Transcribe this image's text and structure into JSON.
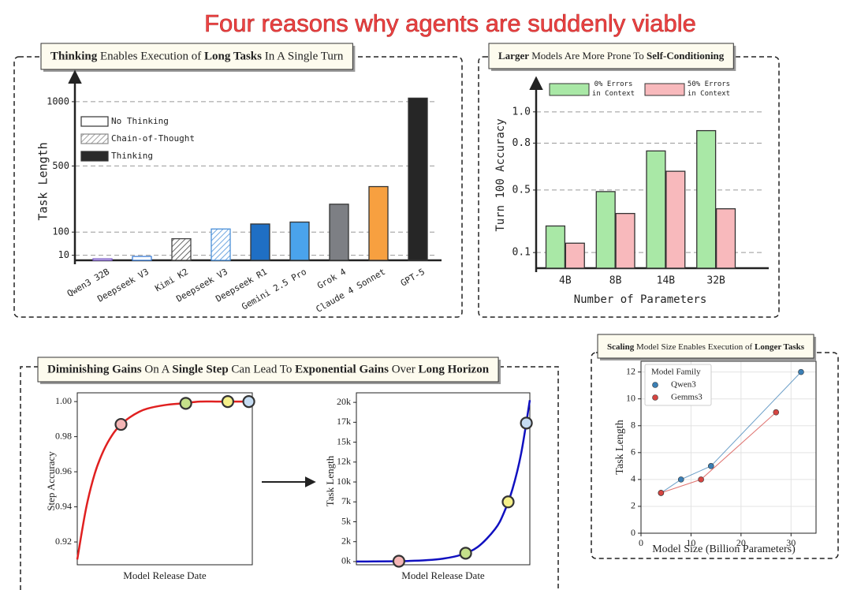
{
  "title": "Four reasons why agents are suddenly viable",
  "panels": [
    {
      "heading": [
        {
          "text": "Thinking",
          "bold": true
        },
        {
          "text": " Enables Execution of ",
          "bold": false
        },
        {
          "text": "Long Tasks",
          "bold": true
        },
        {
          "text": " In A Single Turn",
          "bold": false
        }
      ]
    },
    {
      "heading": [
        {
          "text": "Larger",
          "bold": true
        },
        {
          "text": " Models Are More Prone To ",
          "bold": false
        },
        {
          "text": "Self-Conditioning",
          "bold": true
        }
      ]
    },
    {
      "heading": [
        {
          "text": "Diminishing Gains",
          "bold": true
        },
        {
          "text": " On A ",
          "bold": false
        },
        {
          "text": "Single Step",
          "bold": true
        },
        {
          "text": " Can Lead To ",
          "bold": false
        },
        {
          "text": "Exponential Gains",
          "bold": true
        },
        {
          "text": " Over ",
          "bold": false
        },
        {
          "text": "Long Horizon",
          "bold": true
        }
      ]
    },
    {
      "heading": [
        {
          "text": "Scaling",
          "bold": true
        },
        {
          "text": " Model Size Enables Execution of ",
          "bold": false
        },
        {
          "text": "Longer Tasks",
          "bold": true
        }
      ]
    }
  ],
  "chart_data": [
    {
      "type": "bar",
      "ylabel": "Task Length",
      "categories": [
        "Qwen3 32B",
        "Deepseek V3",
        "Kimi K2",
        "Deepseek V3",
        "Deepseek R1",
        "Gemini 2.5 Pro",
        "Grok 4",
        "Claude 4 Sonnet",
        "GPT-5"
      ],
      "ylim": [
        0,
        1100
      ],
      "yticks": [
        10,
        100,
        500,
        1000
      ],
      "grid": true,
      "series": [
        {
          "name": "No Thinking",
          "style": "hollow",
          "color": "#ffffff",
          "values": [
            2,
            7,
            null,
            null,
            null,
            null,
            null,
            null,
            null
          ],
          "colors": [
            "#7c5cc8",
            "#3f7fd6",
            null,
            null,
            null,
            null,
            null,
            null,
            null
          ]
        },
        {
          "name": "Chain-of-Thought",
          "style": "hatched",
          "color": "#888888",
          "values": [
            null,
            null,
            70,
            115,
            null,
            null,
            null,
            null,
            null
          ],
          "colors": [
            null,
            null,
            "#444444",
            "#4a90d9",
            null,
            null,
            null,
            null,
            null
          ]
        },
        {
          "name": "Thinking",
          "style": "solid",
          "color": "#2b2b2b",
          "values": [
            null,
            null,
            null,
            null,
            140,
            150,
            250,
            360,
            1030
          ],
          "colors": [
            null,
            null,
            null,
            null,
            "#1f6fc4",
            "#4aa3ec",
            "#7d7f84",
            "#f7a040",
            "#262626"
          ]
        }
      ]
    },
    {
      "type": "bar",
      "xlabel": "Number of Parameters",
      "ylabel": "Turn 100 Accuracy",
      "categories": [
        "4B",
        "8B",
        "14B",
        "32B"
      ],
      "ylim": [
        0,
        1.1
      ],
      "yticks": [
        0.1,
        0.5,
        0.8,
        {
          "value": 1,
          "label": "1.0"
        }
      ],
      "grid": true,
      "series": [
        {
          "name": "0% Errors in Context",
          "style": "solid",
          "color": "#a9e8a6",
          "values": [
            0.27,
            0.49,
            0.75,
            0.88
          ]
        },
        {
          "name": "50% Errors in Context",
          "style": "solid",
          "color": "#f8b9bc",
          "values": [
            0.16,
            0.35,
            0.62,
            0.38
          ]
        }
      ]
    },
    {
      "type": "line",
      "xlabel": "Model Release Date",
      "ylabel": "Step Accuracy",
      "xlim": [
        0,
        10
      ],
      "ylim": [
        0.907,
        1.005
      ],
      "yticks": [
        0.92,
        0.94,
        0.96,
        0.98,
        {
          "value": 1,
          "label": "1.00"
        }
      ],
      "grid": false,
      "series": [
        {
          "color": "#e02020",
          "x": [
            0,
            0.5,
            1,
            1.5,
            2,
            2.5,
            3,
            3.5,
            4,
            5,
            6,
            7,
            8,
            9,
            10
          ],
          "values": [
            0.91,
            0.939,
            0.959,
            0.972,
            0.981,
            0.987,
            0.991,
            0.994,
            0.996,
            0.998,
            0.999,
            1.0,
            1.0,
            1.0,
            1.0
          ]
        },
        {
          "color": "#333333",
          "line": false,
          "markers": true,
          "x": [
            2.5,
            6.2,
            8.6,
            9.8
          ],
          "values": [
            0.987,
            0.999,
            1.0,
            1.0
          ],
          "colors": [
            "#f4b6b6",
            "#c5e08a",
            "#f5f08a",
            "#c6dcf2"
          ]
        }
      ]
    },
    {
      "type": "line",
      "xlabel": "Model Release Date",
      "ylabel": "Task Length",
      "xlim": [
        0,
        10
      ],
      "ylim": [
        -400,
        21200
      ],
      "yticks": [
        {
          "value": 0,
          "label": "0k"
        },
        {
          "value": 2500,
          "label": "2k"
        },
        {
          "value": 5000,
          "label": "5k"
        },
        {
          "value": 7500,
          "label": "7k"
        },
        {
          "value": 10000,
          "label": "10k"
        },
        {
          "value": 12500,
          "label": "12k"
        },
        {
          "value": 15000,
          "label": "15k"
        },
        {
          "value": 17500,
          "label": "17k"
        },
        {
          "value": 20000,
          "label": "20k"
        }
      ],
      "grid": false,
      "series": [
        {
          "color": "#1010c0",
          "x": [
            0,
            1,
            2,
            3,
            4,
            5,
            6,
            7,
            8,
            8.5,
            9,
            9.5,
            10
          ],
          "values": [
            7,
            15,
            34,
            75,
            167,
            371,
            826,
            1839,
            4093,
            6106,
            9110,
            13590,
            20280
          ]
        },
        {
          "color": "#333333",
          "line": false,
          "markers": true,
          "x": [
            2.45,
            6.3,
            8.75,
            9.8
          ],
          "values": [
            48,
            1050,
            7500,
            17400
          ],
          "colors": [
            "#f4b6b6",
            "#c5e08a",
            "#f5f08a",
            "#c6dcf2"
          ]
        }
      ]
    },
    {
      "type": "line",
      "xlabel": "Model Size (Billion Parameters)",
      "ylabel": "Task Length",
      "legend_title": "Model Family",
      "xlim": [
        0,
        35
      ],
      "ylim": [
        0,
        12.8
      ],
      "xticks": [
        0,
        10,
        20,
        30
      ],
      "yticks": [
        0,
        2,
        4,
        6,
        8,
        10,
        12
      ],
      "grid": true,
      "series": [
        {
          "name": "Qwen3",
          "color": "#3b7fb5",
          "markers": true,
          "x": [
            4,
            8,
            14,
            32
          ],
          "values": [
            3,
            4,
            5,
            12
          ]
        },
        {
          "name": "Gemms3",
          "color": "#d64541",
          "markers": true,
          "x": [
            4,
            12,
            27
          ],
          "values": [
            3,
            4,
            9
          ]
        }
      ]
    }
  ]
}
